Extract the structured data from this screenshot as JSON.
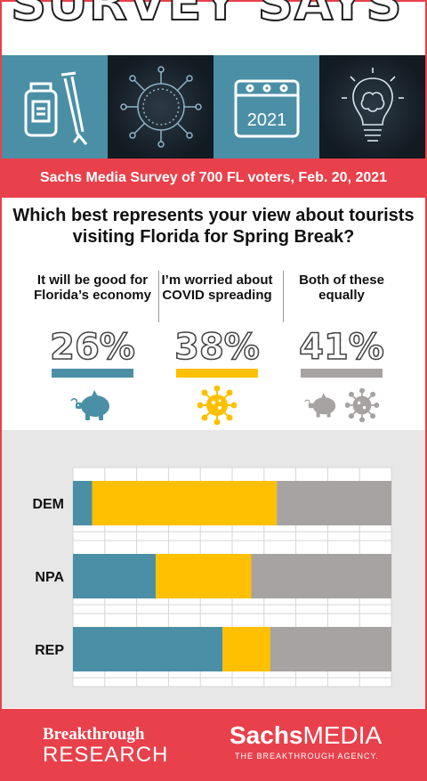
{
  "header": {
    "title": "SURVEY SAYS . . ."
  },
  "icons": [
    "vaccine-vial-syringe-icon",
    "virus-icon",
    "calendar-icon",
    "lightbulb-brain-icon"
  ],
  "calendar_year": "2021",
  "subtitle_band": "Sachs Media Survey of 700 FL voters, Feb. 20, 2021",
  "question": "Which best represents your view about tourists visiting Florida for Spring Break?",
  "options": [
    {
      "label": "It will be good for Florida’s economy",
      "percent": "26%",
      "color": "#4b8fa6",
      "icon": "piggy-bank-icon"
    },
    {
      "label": "I’m worried about COVID spreading",
      "percent": "38%",
      "color": "#fec000",
      "icon": "virus-icon"
    },
    {
      "label": "Both of these equally",
      "percent": "41%",
      "color": "#a6a3a2",
      "icon": "piggy-bank-and-virus-icon"
    }
  ],
  "chart_data": {
    "type": "bar",
    "orientation": "horizontal",
    "stacked": true,
    "categories": [
      "DEM",
      "NPA",
      "REP"
    ],
    "series": [
      {
        "name": "It will be good for Florida’s economy",
        "values": [
          6,
          26,
          47
        ],
        "color": "#4b8fa6"
      },
      {
        "name": "I’m worried about COVID spreading",
        "values": [
          58,
          30,
          15
        ],
        "color": "#fec000"
      },
      {
        "name": "Both of these equally",
        "values": [
          36,
          44,
          38
        ],
        "color": "#a6a3a2"
      }
    ],
    "xlim": [
      0,
      100
    ],
    "grid": true,
    "legend": "none"
  },
  "footer": {
    "left_line1": "Breakthrough",
    "left_line2": "RESEARCH",
    "right_brand_bold": "Sachs",
    "right_brand": "MEDIA",
    "right_tagline": "THE BREAKTHROUGH AGENCY."
  }
}
